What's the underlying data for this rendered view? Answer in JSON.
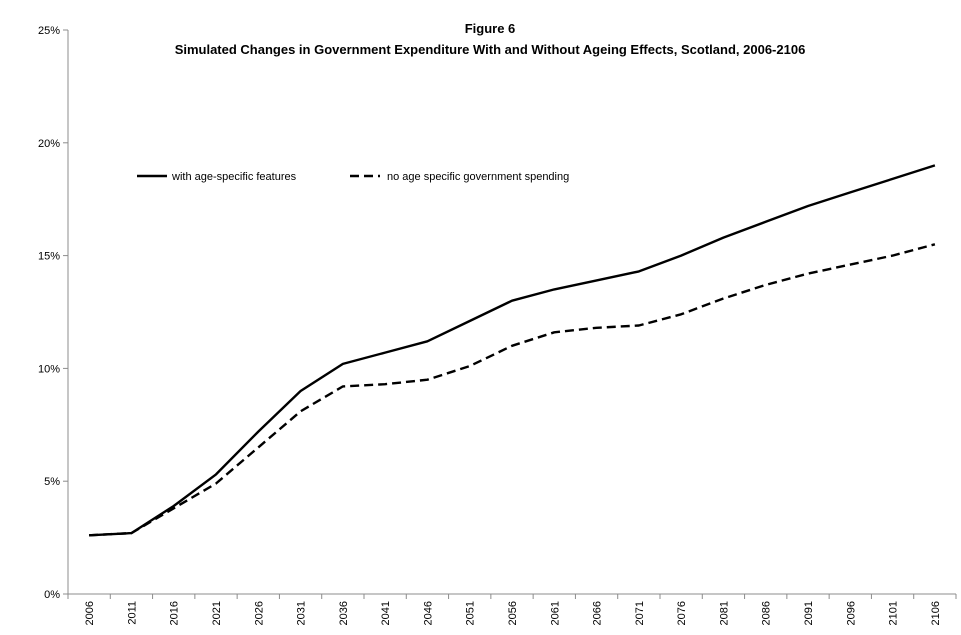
{
  "chart_data": {
    "type": "line",
    "title": "Figure 6",
    "subtitle": "Simulated Changes in Government Expenditure With and Without Ageing Effects, Scotland, 2006-2106",
    "xlabel": "",
    "ylabel": "",
    "x": [
      "2006",
      "2011",
      "2016",
      "2021",
      "2026",
      "2031",
      "2036",
      "2041",
      "2046",
      "2051",
      "2056",
      "2061",
      "2066",
      "2071",
      "2076",
      "2081",
      "2086",
      "2091",
      "2096",
      "2101",
      "2106"
    ],
    "y_ticks": [
      "0%",
      "5%",
      "10%",
      "15%",
      "20%",
      "25%"
    ],
    "ylim": [
      0,
      25
    ],
    "grid": false,
    "legend_position": "top-left",
    "series": [
      {
        "name": "with age-specific features",
        "style": "solid",
        "color": "#000000",
        "values": [
          2.6,
          2.7,
          3.9,
          5.3,
          7.2,
          9.0,
          10.2,
          10.7,
          11.2,
          12.1,
          13.0,
          13.5,
          13.9,
          14.3,
          15.0,
          15.8,
          16.5,
          17.2,
          17.8,
          18.4,
          19.0
        ]
      },
      {
        "name": "no age specific government spending",
        "style": "dashed",
        "color": "#000000",
        "values": [
          2.6,
          2.7,
          3.8,
          4.9,
          6.5,
          8.1,
          9.2,
          9.3,
          9.5,
          10.1,
          11.0,
          11.6,
          11.8,
          11.9,
          12.4,
          13.1,
          13.7,
          14.2,
          14.6,
          15.0,
          15.5
        ]
      }
    ]
  }
}
